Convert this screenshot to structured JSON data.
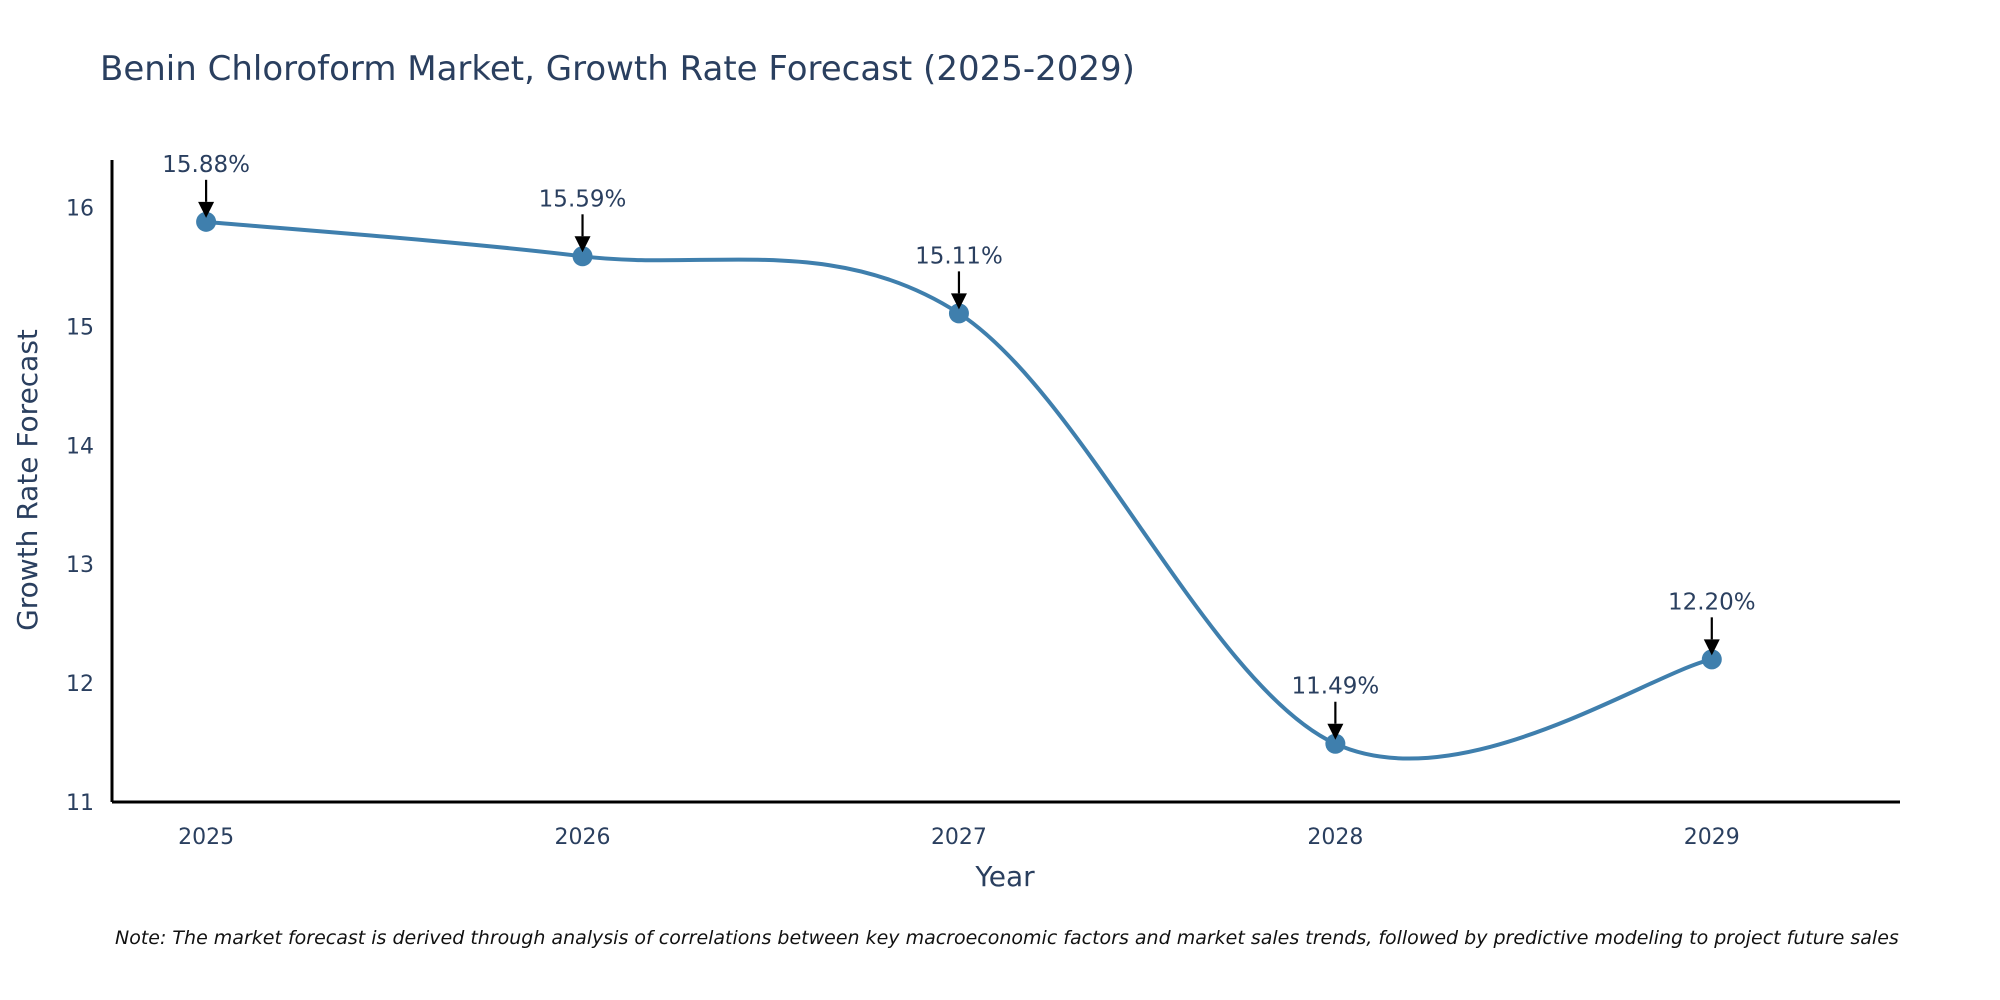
{
  "chart_data": {
    "type": "line",
    "title": "Benin Chloroform Market, Growth Rate Forecast (2025-2029)",
    "xlabel": "Year",
    "ylabel": "Growth Rate Forecast",
    "categories": [
      "2025",
      "2026",
      "2027",
      "2028",
      "2029"
    ],
    "series": [
      {
        "name": "Growth Rate Forecast",
        "values": [
          15.88,
          15.59,
          15.11,
          11.49,
          12.2
        ],
        "labels": [
          "15.88%",
          "15.59%",
          "15.11%",
          "11.49%",
          "12.20%"
        ]
      }
    ],
    "ylim": [
      11,
      16.4
    ],
    "yticks": [
      11,
      12,
      13,
      14,
      15,
      16
    ],
    "grid": false,
    "line_color": "#3f7fad",
    "marker_color": "#3f7fad",
    "annotation_color": "#000000"
  },
  "note": "Note: The market forecast is derived through analysis of correlations between key macroeconomic factors and market sales trends, followed by predictive modeling to project future sales"
}
